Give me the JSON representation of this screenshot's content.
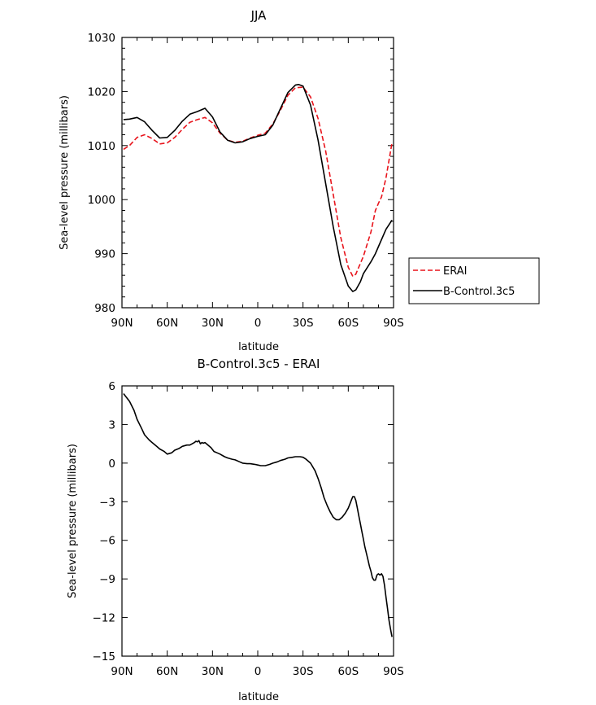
{
  "chart_data": [
    {
      "type": "line",
      "title": "JJA",
      "xlabel": "latitude",
      "ylabel": "Sea-level pressure (millibars)",
      "xlim": [
        90,
        -90
      ],
      "ylim": [
        980,
        1030
      ],
      "x_ticks": [
        90,
        60,
        30,
        0,
        -30,
        -60,
        -90
      ],
      "x_tick_labels": [
        "90N",
        "60N",
        "30N",
        "0",
        "30S",
        "60S",
        "90S"
      ],
      "y_ticks": [
        980,
        990,
        1000,
        1010,
        1020,
        1030
      ],
      "y_tick_labels": [
        "980",
        "990",
        "1000",
        "1010",
        "1020",
        "1030"
      ],
      "legend_placement": "outside-right",
      "series": [
        {
          "name": "ERAI",
          "color": "#e8141c",
          "dash": "dashed",
          "x": [
            89,
            85,
            80,
            75,
            70,
            65,
            60,
            55,
            50,
            45,
            40,
            35,
            30,
            25,
            20,
            15,
            10,
            5,
            0,
            -5,
            -10,
            -15,
            -20,
            -25,
            -30,
            -35,
            -40,
            -45,
            -50,
            -55,
            -60,
            -63,
            -65,
            -70,
            -75,
            -78,
            -80,
            -82,
            -85,
            -89
          ],
          "y": [
            1009.3,
            1010.0,
            1011.5,
            1012.0,
            1011.3,
            1010.3,
            1010.5,
            1011.5,
            1013.0,
            1014.3,
            1014.8,
            1015.2,
            1014.2,
            1012.3,
            1011.0,
            1010.6,
            1010.8,
            1011.4,
            1011.9,
            1012.3,
            1014.0,
            1016.5,
            1019.3,
            1020.7,
            1020.8,
            1019.0,
            1015.0,
            1009.0,
            1001.0,
            993.0,
            987.5,
            985.8,
            986.2,
            989.5,
            994.0,
            998.0,
            999.3,
            1000.5,
            1004.0,
            1010.5
          ]
        },
        {
          "name": "B-Control.3c5",
          "color": "#000000",
          "dash": "solid",
          "x": [
            89,
            85,
            80,
            75,
            70,
            65,
            60,
            55,
            50,
            45,
            40,
            35,
            30,
            25,
            20,
            15,
            10,
            5,
            0,
            -5,
            -10,
            -15,
            -20,
            -25,
            -27,
            -30,
            -35,
            -40,
            -45,
            -50,
            -55,
            -60,
            -63,
            -65,
            -68,
            -70,
            -75,
            -78,
            -80,
            -85,
            -89
          ],
          "y": [
            1014.8,
            1014.9,
            1015.2,
            1014.4,
            1012.8,
            1011.4,
            1011.5,
            1012.8,
            1014.5,
            1015.8,
            1016.3,
            1016.9,
            1015.3,
            1012.5,
            1011.0,
            1010.5,
            1010.7,
            1011.3,
            1011.7,
            1012.0,
            1013.8,
            1016.8,
            1019.8,
            1021.2,
            1021.3,
            1021.0,
            1017.5,
            1011.0,
            1003.0,
            995.0,
            988.0,
            984.0,
            983.0,
            983.3,
            984.8,
            986.3,
            988.5,
            990.0,
            991.3,
            994.5,
            996.2
          ]
        }
      ]
    },
    {
      "type": "line",
      "title": "B-Control.3c5 - ERAI",
      "xlabel": "latitude",
      "ylabel": "Sea-level pressure (millibars)",
      "xlim": [
        90,
        -90
      ],
      "ylim": [
        -15,
        6
      ],
      "x_ticks": [
        90,
        60,
        30,
        0,
        -30,
        -60,
        -90
      ],
      "x_tick_labels": [
        "90N",
        "60N",
        "30N",
        "0",
        "30S",
        "60S",
        "90S"
      ],
      "y_ticks": [
        -15,
        -12,
        -9,
        -6,
        -3,
        0,
        3,
        6
      ],
      "y_tick_labels": [
        "-15",
        "-12",
        "-9",
        "-6",
        "-3",
        "0",
        "3",
        "6"
      ],
      "series": [
        {
          "color": "#000000",
          "dash": "solid",
          "x": [
            89,
            87,
            85,
            82,
            80,
            77,
            75,
            72,
            70,
            67,
            65,
            62,
            60,
            57,
            55,
            52,
            50,
            47,
            45,
            42,
            41,
            40,
            39,
            38,
            37,
            36,
            35,
            33,
            31,
            29,
            27,
            25,
            22,
            20,
            17,
            15,
            12,
            10,
            7,
            5,
            2,
            0,
            -2,
            -5,
            -8,
            -10,
            -13,
            -15,
            -18,
            -20,
            -23,
            -25,
            -28,
            -30,
            -32,
            -35,
            -38,
            -40,
            -42,
            -44,
            -46,
            -48,
            -50,
            -52,
            -54,
            -56,
            -58,
            -60,
            -61,
            -62,
            -63,
            -64,
            -65,
            -66,
            -67,
            -68,
            -69,
            -70,
            -71,
            -72,
            -73,
            -74,
            -75,
            -76,
            -77,
            -78,
            -79,
            -80,
            -81,
            -82,
            -83,
            -84,
            -85,
            -86,
            -87,
            -88,
            -89
          ],
          "y": [
            5.4,
            5.1,
            4.8,
            4.1,
            3.4,
            2.7,
            2.2,
            1.8,
            1.6,
            1.3,
            1.1,
            0.9,
            0.7,
            0.8,
            1.0,
            1.15,
            1.3,
            1.4,
            1.4,
            1.6,
            1.7,
            1.65,
            1.75,
            1.5,
            1.6,
            1.55,
            1.6,
            1.4,
            1.2,
            0.9,
            0.8,
            0.7,
            0.5,
            0.4,
            0.3,
            0.25,
            0.1,
            0.0,
            -0.05,
            -0.05,
            -0.1,
            -0.15,
            -0.2,
            -0.2,
            -0.1,
            0.0,
            0.1,
            0.2,
            0.3,
            0.4,
            0.45,
            0.5,
            0.5,
            0.45,
            0.3,
            0.0,
            -0.6,
            -1.2,
            -1.9,
            -2.7,
            -3.3,
            -3.8,
            -4.2,
            -4.4,
            -4.4,
            -4.2,
            -3.9,
            -3.5,
            -3.2,
            -2.9,
            -2.6,
            -2.6,
            -2.9,
            -3.5,
            -4.1,
            -4.7,
            -5.3,
            -5.9,
            -6.5,
            -7.0,
            -7.5,
            -8.0,
            -8.4,
            -8.9,
            -9.1,
            -9.1,
            -8.7,
            -8.6,
            -8.7,
            -8.6,
            -8.8,
            -9.5,
            -10.4,
            -11.3,
            -12.2,
            -12.9,
            -13.5
          ]
        }
      ]
    }
  ]
}
